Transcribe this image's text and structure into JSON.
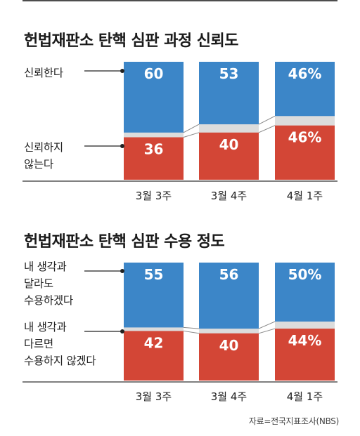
{
  "source": "자료=전국지표조사(NBS)",
  "colors": {
    "blue": "#3c86c8",
    "red": "#d34636",
    "gap": "#dcdcdc",
    "axis": "#333333",
    "bar_text": "#ffffff"
  },
  "chart_data": [
    {
      "type": "bar",
      "stacked": true,
      "title": "헌법재판소 탄핵 심판 과정 신뢰도",
      "categories": [
        "3월 3주",
        "3월 4주",
        "4월 1주"
      ],
      "series": [
        {
          "name": "신뢰한다",
          "values": [
            60,
            53,
            46
          ],
          "labels": [
            "60",
            "53",
            "46%"
          ],
          "color": "#3c86c8"
        },
        {
          "name": "신뢰하지\n않는다",
          "values": [
            36,
            40,
            46
          ],
          "labels": [
            "36",
            "40",
            "46%"
          ],
          "color": "#d34636"
        }
      ],
      "ylim": [
        0,
        100
      ]
    },
    {
      "type": "bar",
      "stacked": true,
      "title": "헌법재판소 탄핵 심판 수용 정도",
      "categories": [
        "3월 3주",
        "3월 4주",
        "4월 1주"
      ],
      "series": [
        {
          "name": "내 생각과\n달라도\n수용하겠다",
          "values": [
            55,
            56,
            50
          ],
          "labels": [
            "55",
            "56",
            "50%"
          ],
          "color": "#3c86c8"
        },
        {
          "name": "내 생각과\n다르면\n수용하지 않겠다",
          "values": [
            42,
            40,
            44
          ],
          "labels": [
            "42",
            "40",
            "44%"
          ],
          "color": "#d34636"
        }
      ],
      "ylim": [
        0,
        100
      ]
    }
  ]
}
